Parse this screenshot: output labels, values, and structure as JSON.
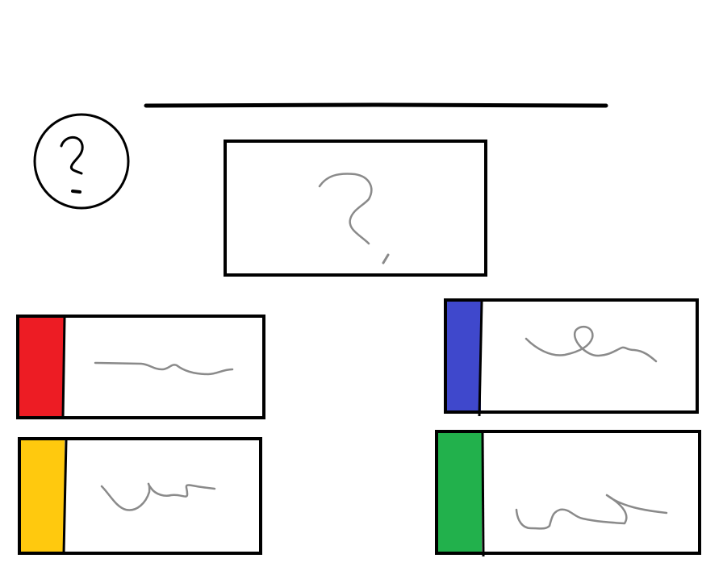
{
  "sketch": {
    "help_icon": "question-mark-icon",
    "prompt_card_icon": "question-mark-icon",
    "colors": {
      "stroke": "#000000",
      "scribble": "#8a8a8a",
      "red": "#ed1c24",
      "blue": "#3f48cc",
      "yellow": "#ffc90e",
      "green": "#22b14c",
      "background": "#ffffff"
    },
    "answer_options": [
      {
        "color_name": "red"
      },
      {
        "color_name": "blue"
      },
      {
        "color_name": "yellow"
      },
      {
        "color_name": "green"
      }
    ]
  }
}
